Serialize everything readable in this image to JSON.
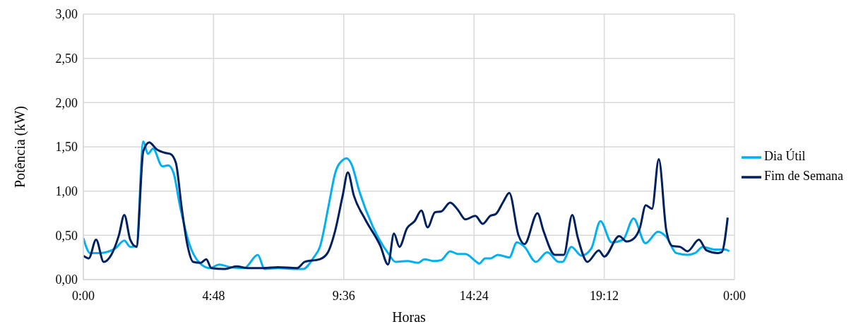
{
  "chart_data": {
    "type": "line",
    "xlabel": "Horas",
    "ylabel": "Potência (kW)",
    "xlim": [
      0,
      24
    ],
    "xticks": [
      {
        "value": 0,
        "label": "0:00"
      },
      {
        "value": 4.8,
        "label": "4:48"
      },
      {
        "value": 9.6,
        "label": "9:36"
      },
      {
        "value": 14.4,
        "label": "14:24"
      },
      {
        "value": 19.2,
        "label": "19:12"
      },
      {
        "value": 24,
        "label": "0:00"
      }
    ],
    "ylim": [
      0,
      3
    ],
    "yticks": [
      {
        "value": 0,
        "label": "0,00"
      },
      {
        "value": 0.5,
        "label": "0,50"
      },
      {
        "value": 1,
        "label": "1,00"
      },
      {
        "value": 1.5,
        "label": "1,50"
      },
      {
        "value": 2,
        "label": "2,00"
      },
      {
        "value": 2.5,
        "label": "2,50"
      },
      {
        "value": 3,
        "label": "3,00"
      }
    ],
    "grid": true,
    "legend": "right",
    "marker": "none",
    "line_style": "solid",
    "series": [
      {
        "name": "Dia Útil",
        "color": "#00b0f0",
        "x": [
          0,
          0.25,
          0.61,
          1.17,
          1.51,
          1.73,
          1.96,
          2.21,
          2.38,
          2.57,
          2.91,
          3.13,
          3.33,
          3.55,
          3.91,
          4.25,
          4.67,
          5.01,
          5.42,
          5.93,
          6.43,
          6.68,
          7.18,
          7.74,
          8.1,
          8.49,
          8.72,
          9.05,
          9.28,
          9.56,
          9.7,
          9.89,
          10.17,
          10.67,
          11.23,
          11.51,
          11.93,
          12.35,
          12.57,
          12.91,
          13.19,
          13.52,
          13.8,
          14.08,
          14.45,
          14.59,
          14.81,
          15,
          15.28,
          15.7,
          15.98,
          16.26,
          16.68,
          17.1,
          17.52,
          17.66,
          17.99,
          18.36,
          18.72,
          19.06,
          19.47,
          19.89,
          20.28,
          20.72,
          21.18,
          21.49,
          21.85,
          22.27,
          22.55,
          22.83,
          23.25,
          23.67,
          23.81
        ],
        "values": [
          0.47,
          0.3,
          0.3,
          0.35,
          0.44,
          0.37,
          0.38,
          1.56,
          1.42,
          1.48,
          1.28,
          1.29,
          1.2,
          0.85,
          0.4,
          0.2,
          0.13,
          0.17,
          0.14,
          0.13,
          0.28,
          0.12,
          0.13,
          0.12,
          0.12,
          0.25,
          0.37,
          0.85,
          1.2,
          1.35,
          1.37,
          1.3,
          1.0,
          0.6,
          0.3,
          0.2,
          0.21,
          0.19,
          0.23,
          0.21,
          0.22,
          0.32,
          0.29,
          0.29,
          0.21,
          0.18,
          0.24,
          0.24,
          0.28,
          0.25,
          0.42,
          0.37,
          0.2,
          0.31,
          0.2,
          0.2,
          0.37,
          0.27,
          0.35,
          0.66,
          0.42,
          0.45,
          0.69,
          0.41,
          0.54,
          0.48,
          0.3,
          0.28,
          0.3,
          0.37,
          0.34,
          0.34,
          0.32
        ]
      },
      {
        "name": "Fim de Semana",
        "color": "#002060",
        "x": [
          0,
          0.2,
          0.47,
          0.75,
          1.03,
          1.31,
          1.51,
          1.73,
          1.96,
          2.21,
          2.43,
          2.71,
          3.05,
          3.21,
          3.41,
          3.63,
          3.83,
          4.05,
          4.33,
          4.53,
          4.72,
          5.22,
          5.64,
          6.06,
          6.62,
          7.18,
          7.88,
          8.16,
          8.72,
          9,
          9.28,
          9.56,
          9.75,
          9.97,
          10.39,
          10.95,
          11.23,
          11.45,
          11.65,
          11.93,
          12.21,
          12.46,
          12.69,
          12.96,
          13.19,
          13.52,
          13.8,
          14.08,
          14.45,
          14.72,
          15,
          15.2,
          15.48,
          15.7,
          16.04,
          16.26,
          16.74,
          16.96,
          17.38,
          17.71,
          18.02,
          18.22,
          18.58,
          19,
          19.2,
          19.75,
          20.03,
          20.31,
          20.51,
          20.73,
          20.96,
          21.21,
          21.49,
          21.71,
          21.99,
          22.27,
          22.69,
          22.97,
          23.39,
          23.53,
          23.75
        ],
        "values": [
          0.27,
          0.24,
          0.45,
          0.2,
          0.28,
          0.5,
          0.73,
          0.45,
          0.37,
          1.45,
          1.55,
          1.47,
          1.43,
          1.42,
          1.32,
          0.8,
          0.4,
          0.2,
          0.19,
          0.23,
          0.13,
          0.12,
          0.15,
          0.13,
          0.13,
          0.14,
          0.13,
          0.2,
          0.23,
          0.3,
          0.55,
          0.95,
          1.21,
          0.95,
          0.68,
          0.38,
          0.17,
          0.52,
          0.37,
          0.58,
          0.66,
          0.78,
          0.59,
          0.76,
          0.77,
          0.87,
          0.79,
          0.68,
          0.72,
          0.63,
          0.72,
          0.74,
          0.88,
          0.98,
          0.5,
          0.4,
          0.75,
          0.55,
          0.28,
          0.28,
          0.73,
          0.48,
          0.2,
          0.33,
          0.26,
          0.49,
          0.43,
          0.47,
          0.58,
          0.84,
          0.8,
          1.36,
          0.55,
          0.38,
          0.37,
          0.32,
          0.45,
          0.33,
          0.3,
          0.31,
          0.7
        ]
      }
    ]
  }
}
